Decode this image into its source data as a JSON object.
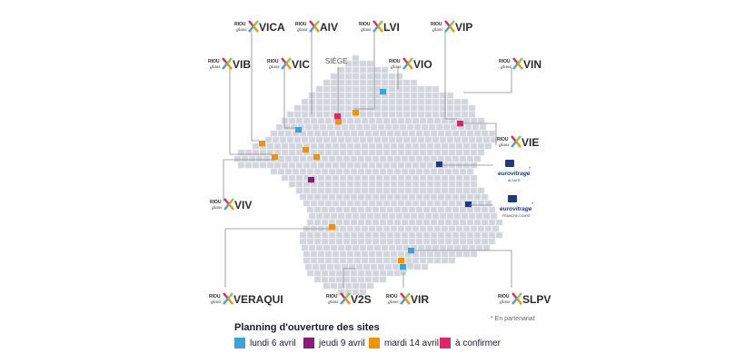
{
  "colors": {
    "lundi": "#3ba3dc",
    "jeudi": "#8b1a7a",
    "mardi": "#f39200",
    "confirmer": "#e2236a",
    "partner": "#1e3a78",
    "tile": "#d3d5dc",
    "logo_x_colors": [
      "#e2236a",
      "#8dc63f",
      "#3ba3dc",
      "#f39200"
    ]
  },
  "brand": {
    "line1": "RIOU",
    "line2": "glass"
  },
  "sites": {
    "vica": "VICA",
    "aiv": "AIV",
    "lvi": "LVI",
    "vip": "VIP",
    "vib": "VIB",
    "vic": "VIC",
    "vio": "VIO",
    "vin": "VIN",
    "vie": "VIE",
    "viv": "VIV",
    "veraqui": "VERAQUI",
    "v2s": "V2S",
    "vir": "VIR",
    "slpv": "SLPV"
  },
  "siege": "SIÈGE",
  "partners": {
    "name": "eurovitrage",
    "sub1": "ALSACE",
    "sub2": "FRANCHE-COMTÉ",
    "marker": "*"
  },
  "footnote": "* En partenariat",
  "legend": {
    "title": "Planning d'ouverture des sites",
    "items": [
      {
        "label": "lundi 6 avril",
        "color": "#3ba3dc"
      },
      {
        "label": "jeudi 9 avril",
        "color": "#8b1a7a"
      },
      {
        "label": "mardi 14 avril",
        "color": "#f39200"
      },
      {
        "label": "à confirmer",
        "color": "#e2236a"
      }
    ]
  }
}
